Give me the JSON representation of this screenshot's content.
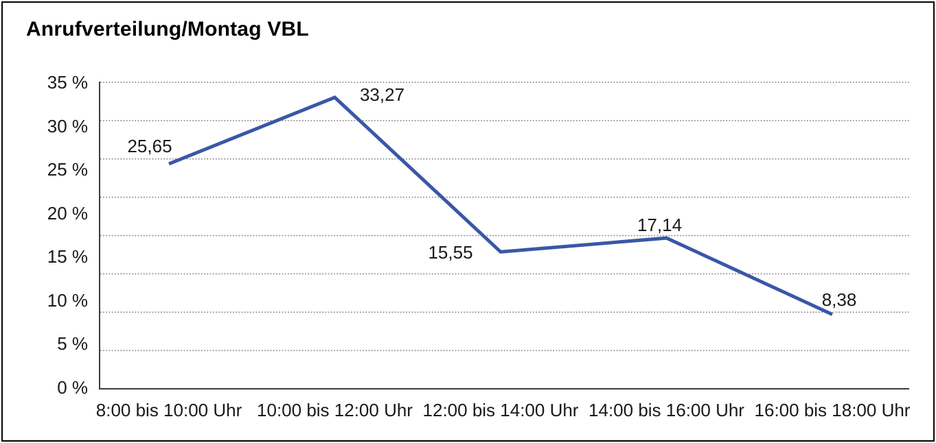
{
  "title": "Anrufverteilung/Montag VBL",
  "chart_data": {
    "type": "line",
    "title": "Anrufverteilung/Montag VBL",
    "categories": [
      "8:00 bis 10:00 Uhr",
      "10:00 bis 12:00 Uhr",
      "12:00 bis 14:00 Uhr",
      "14:00 bis 16:00 Uhr",
      "16:00 bis 18:00 Uhr"
    ],
    "values": [
      25.65,
      33.27,
      15.55,
      17.14,
      8.38
    ],
    "value_labels": [
      "25,65",
      "33,27",
      "15,55",
      "17,14",
      "8,38"
    ],
    "y_tick_labels": [
      "35 %",
      "30 %",
      "25 %",
      "20 %",
      "15 %",
      "10 %",
      "5 %",
      "0 %"
    ],
    "ylim": [
      0,
      35
    ],
    "xlabel": "",
    "ylabel": "",
    "legend": "none",
    "grid": "horizontal-dotted",
    "line_color": "#3A57A7",
    "axis_color": "#3d3d3d",
    "grid_color": "#757575",
    "unit": "%"
  }
}
